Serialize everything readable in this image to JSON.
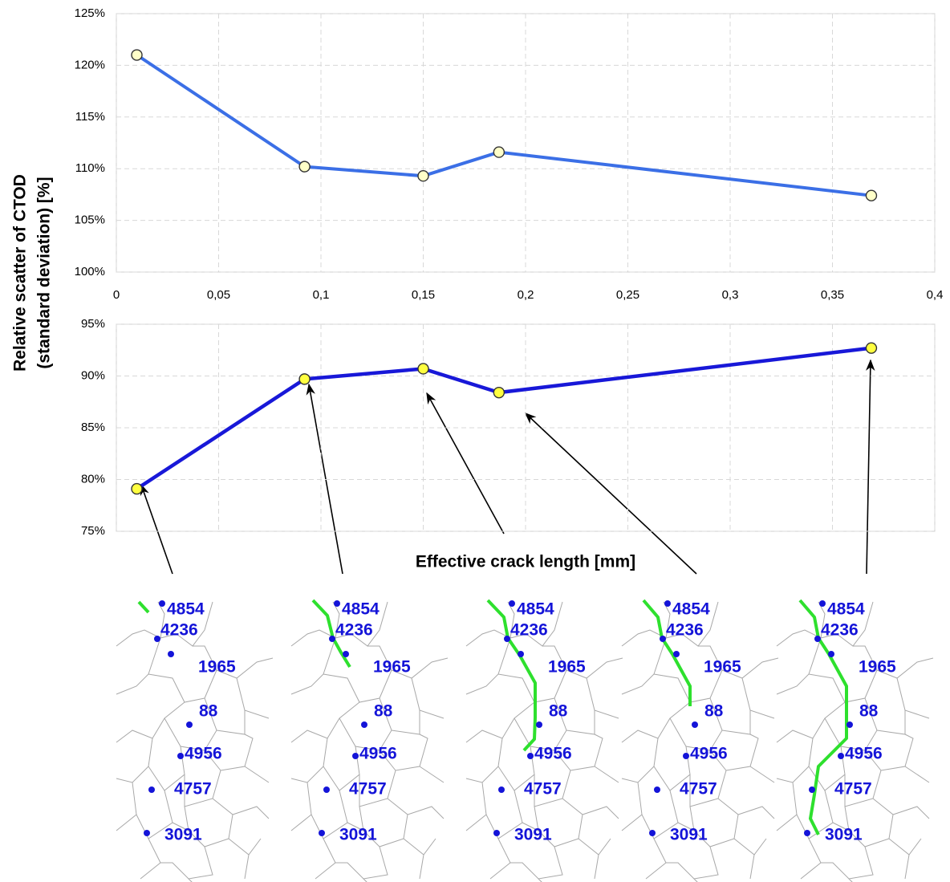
{
  "chart_data": [
    {
      "type": "line",
      "y_label_lines": [
        "Relative scatter of CTOD",
        "(standard deviation) [%]"
      ],
      "x": [
        0.01,
        0.092,
        0.15,
        0.187,
        0.369
      ],
      "series": [
        {
          "color": "#3b6fe6",
          "values": [
            121,
            110.2,
            109.3,
            111.6,
            107.4
          ]
        }
      ],
      "marker_fill": "#ffffc8",
      "xlim": [
        0,
        0.4
      ],
      "xticks": [
        0,
        {
          "value": 0.05,
          "label": "0,05"
        },
        {
          "value": 0.1,
          "label": "0,1"
        },
        {
          "value": 0.15,
          "label": "0,15"
        },
        {
          "value": 0.2,
          "label": "0,2"
        },
        {
          "value": 0.25,
          "label": "0,25"
        },
        {
          "value": 0.3,
          "label": "0,3"
        },
        {
          "value": 0.35,
          "label": "0,35"
        },
        {
          "value": 0.4,
          "label": "0,4"
        }
      ],
      "ylim": [
        100,
        125
      ],
      "yticks": [
        {
          "value": 100,
          "label": "100%"
        },
        {
          "value": 105,
          "label": "105%"
        },
        {
          "value": 110,
          "label": "110%"
        },
        {
          "value": 115,
          "label": "115%"
        },
        {
          "value": 120,
          "label": "120%"
        },
        {
          "value": 125,
          "label": "125%"
        }
      ],
      "grid": true
    },
    {
      "type": "line",
      "x_label": "Effective crack length [mm]",
      "x": [
        0.01,
        0.092,
        0.15,
        0.187,
        0.369
      ],
      "series": [
        {
          "color": "#1818d8",
          "values": [
            79.1,
            89.7,
            90.7,
            88.4,
            92.7
          ]
        }
      ],
      "marker_fill": "#ffff40",
      "xlim": [
        0,
        0.4
      ],
      "ylim": [
        75,
        95
      ],
      "yticks": [
        {
          "value": 75,
          "label": "75%"
        },
        {
          "value": 80,
          "label": "80%"
        },
        {
          "value": 85,
          "label": "85%"
        },
        {
          "value": 90,
          "label": "90%"
        },
        {
          "value": 95,
          "label": "95%"
        }
      ],
      "grid": true
    }
  ],
  "microstructure": {
    "grain_ids": [
      "4854",
      "4236",
      "1965",
      "88",
      "4956",
      "4757",
      "3091"
    ]
  }
}
